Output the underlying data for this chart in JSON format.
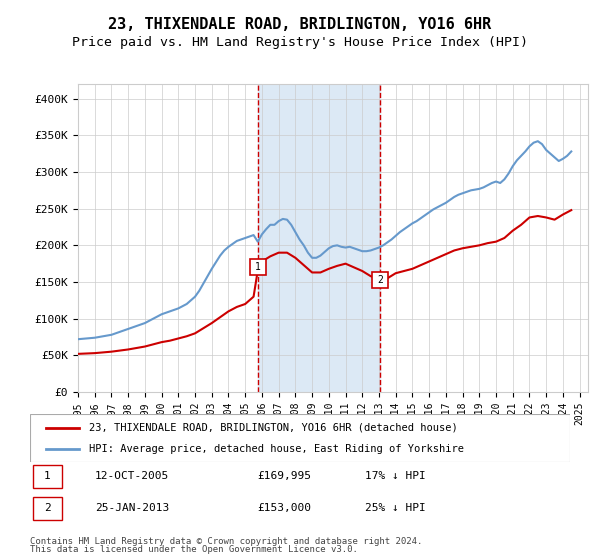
{
  "title": "23, THIXENDALE ROAD, BRIDLINGTON, YO16 6HR",
  "subtitle": "Price paid vs. HM Land Registry's House Price Index (HPI)",
  "title_fontsize": 11,
  "subtitle_fontsize": 9.5,
  "ylabel_ticks": [
    "£0",
    "£50K",
    "£100K",
    "£150K",
    "£200K",
    "£250K",
    "£300K",
    "£350K",
    "£400K"
  ],
  "ytick_vals": [
    0,
    50000,
    100000,
    150000,
    200000,
    250000,
    300000,
    350000,
    400000
  ],
  "ylim": [
    0,
    420000
  ],
  "xlim_start": 1995.0,
  "xlim_end": 2025.5,
  "sale1_x": 2005.78,
  "sale1_y": 169995,
  "sale2_x": 2013.07,
  "sale2_y": 153000,
  "sale1_label": "1",
  "sale2_label": "2",
  "shade_color": "#dce9f5",
  "dashed_color": "#cc0000",
  "hpi_color": "#6699cc",
  "price_color": "#cc0000",
  "legend_entry1": "23, THIXENDALE ROAD, BRIDLINGTON, YO16 6HR (detached house)",
  "legend_entry2": "HPI: Average price, detached house, East Riding of Yorkshire",
  "table_row1": [
    "1",
    "12-OCT-2005",
    "£169,995",
    "17% ↓ HPI"
  ],
  "table_row2": [
    "2",
    "25-JAN-2013",
    "£153,000",
    "25% ↓ HPI"
  ],
  "footnote1": "Contains HM Land Registry data © Crown copyright and database right 2024.",
  "footnote2": "This data is licensed under the Open Government Licence v3.0.",
  "hpi_data_x": [
    1995.0,
    1995.25,
    1995.5,
    1995.75,
    1996.0,
    1996.25,
    1996.5,
    1996.75,
    1997.0,
    1997.25,
    1997.5,
    1997.75,
    1998.0,
    1998.25,
    1998.5,
    1998.75,
    1999.0,
    1999.25,
    1999.5,
    1999.75,
    2000.0,
    2000.25,
    2000.5,
    2000.75,
    2001.0,
    2001.25,
    2001.5,
    2001.75,
    2002.0,
    2002.25,
    2002.5,
    2002.75,
    2003.0,
    2003.25,
    2003.5,
    2003.75,
    2004.0,
    2004.25,
    2004.5,
    2004.75,
    2005.0,
    2005.25,
    2005.5,
    2005.75,
    2006.0,
    2006.25,
    2006.5,
    2006.75,
    2007.0,
    2007.25,
    2007.5,
    2007.75,
    2008.0,
    2008.25,
    2008.5,
    2008.75,
    2009.0,
    2009.25,
    2009.5,
    2009.75,
    2010.0,
    2010.25,
    2010.5,
    2010.75,
    2011.0,
    2011.25,
    2011.5,
    2011.75,
    2012.0,
    2012.25,
    2012.5,
    2012.75,
    2013.0,
    2013.25,
    2013.5,
    2013.75,
    2014.0,
    2014.25,
    2014.5,
    2014.75,
    2015.0,
    2015.25,
    2015.5,
    2015.75,
    2016.0,
    2016.25,
    2016.5,
    2016.75,
    2017.0,
    2017.25,
    2017.5,
    2017.75,
    2018.0,
    2018.25,
    2018.5,
    2018.75,
    2019.0,
    2019.25,
    2019.5,
    2019.75,
    2020.0,
    2020.25,
    2020.5,
    2020.75,
    2021.0,
    2021.25,
    2021.5,
    2021.75,
    2022.0,
    2022.25,
    2022.5,
    2022.75,
    2023.0,
    2023.25,
    2023.5,
    2023.75,
    2024.0,
    2024.25,
    2024.5
  ],
  "hpi_data_y": [
    72000,
    72500,
    73000,
    73500,
    74000,
    75000,
    76000,
    77000,
    78000,
    80000,
    82000,
    84000,
    86000,
    88000,
    90000,
    92000,
    94000,
    97000,
    100000,
    103000,
    106000,
    108000,
    110000,
    112000,
    114000,
    117000,
    120000,
    125000,
    130000,
    138000,
    148000,
    158000,
    168000,
    177000,
    186000,
    193000,
    198000,
    202000,
    206000,
    208000,
    210000,
    212000,
    214000,
    205000,
    215000,
    222000,
    228000,
    228000,
    233000,
    236000,
    235000,
    228000,
    218000,
    208000,
    200000,
    190000,
    183000,
    183000,
    186000,
    191000,
    196000,
    199000,
    200000,
    198000,
    197000,
    198000,
    196000,
    194000,
    192000,
    192000,
    193000,
    195000,
    197000,
    200000,
    204000,
    208000,
    213000,
    218000,
    222000,
    226000,
    230000,
    233000,
    237000,
    241000,
    245000,
    249000,
    252000,
    255000,
    258000,
    262000,
    266000,
    269000,
    271000,
    273000,
    275000,
    276000,
    277000,
    279000,
    282000,
    285000,
    287000,
    285000,
    290000,
    298000,
    308000,
    316000,
    322000,
    328000,
    335000,
    340000,
    342000,
    338000,
    330000,
    325000,
    320000,
    315000,
    318000,
    322000,
    328000
  ],
  "price_data_x": [
    1995.0,
    1995.5,
    1996.0,
    1996.5,
    1997.0,
    1997.5,
    1998.0,
    1998.5,
    1999.0,
    1999.5,
    2000.0,
    2000.5,
    2001.0,
    2001.5,
    2002.0,
    2002.5,
    2003.0,
    2003.5,
    2004.0,
    2004.5,
    2005.0,
    2005.5,
    2005.78,
    2006.0,
    2006.5,
    2007.0,
    2007.5,
    2008.0,
    2008.5,
    2009.0,
    2009.5,
    2010.0,
    2010.5,
    2011.0,
    2011.5,
    2012.0,
    2012.5,
    2013.07,
    2013.5,
    2014.0,
    2014.5,
    2015.0,
    2015.5,
    2016.0,
    2016.5,
    2017.0,
    2017.5,
    2018.0,
    2018.5,
    2019.0,
    2019.5,
    2020.0,
    2020.5,
    2021.0,
    2021.5,
    2022.0,
    2022.5,
    2023.0,
    2023.5,
    2024.0,
    2024.5
  ],
  "price_data_y": [
    52000,
    52500,
    53000,
    54000,
    55000,
    56500,
    58000,
    60000,
    62000,
    65000,
    68000,
    70000,
    73000,
    76000,
    80000,
    87000,
    94000,
    102000,
    110000,
    116000,
    120000,
    130000,
    169995,
    178000,
    185000,
    190000,
    190000,
    183000,
    173000,
    163000,
    163000,
    168000,
    172000,
    175000,
    170000,
    165000,
    158000,
    153000,
    155000,
    162000,
    165000,
    168000,
    173000,
    178000,
    183000,
    188000,
    193000,
    196000,
    198000,
    200000,
    203000,
    205000,
    210000,
    220000,
    228000,
    238000,
    240000,
    238000,
    235000,
    242000,
    248000
  ]
}
